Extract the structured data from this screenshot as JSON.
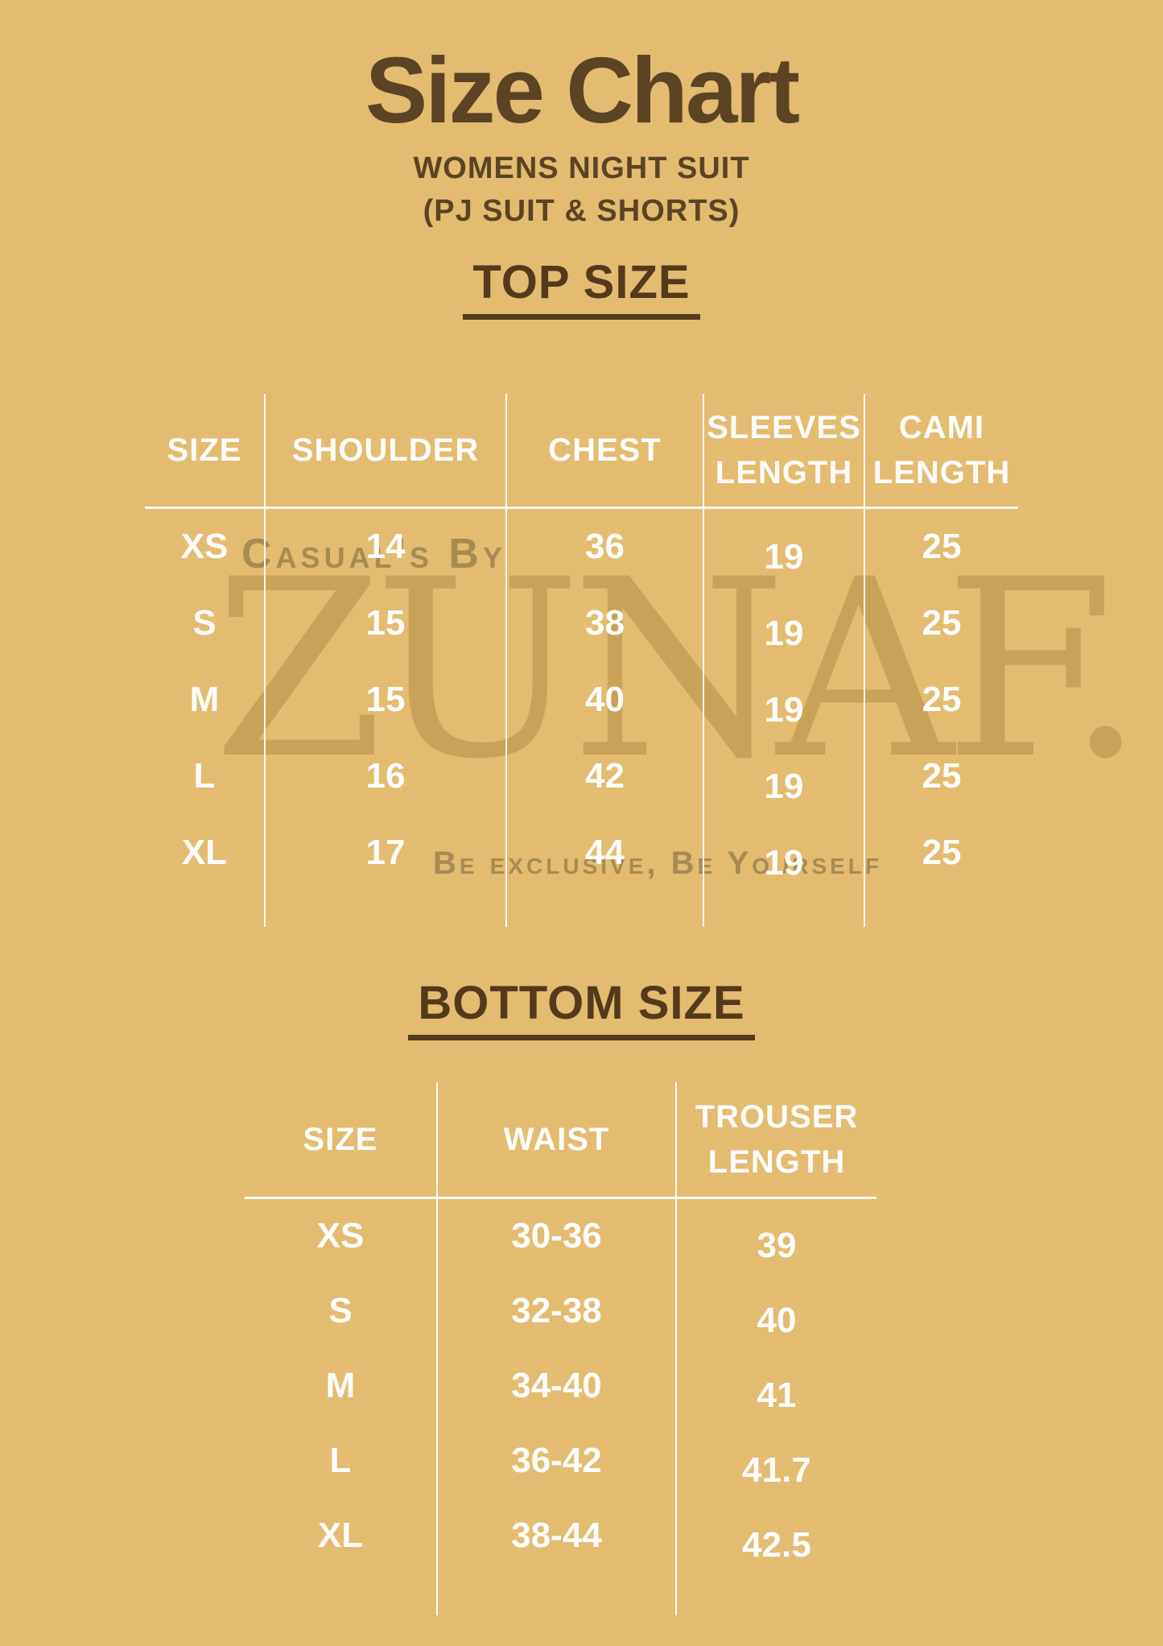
{
  "header": {
    "title": "Size Chart",
    "subtitle1": "WOMENS NIGHT SUIT",
    "subtitle2": "(PJ SUIT & SHORTS)"
  },
  "colors": {
    "background": "#e3bc71",
    "heading_text": "#5b4323",
    "table_text": "#fdfdfb",
    "watermark": "#94732c"
  },
  "top_section": {
    "heading": "TOP SIZE",
    "table": {
      "headers": [
        "SIZE",
        "SHOULDER",
        "CHEST",
        "SLEEVES LENGTH",
        "CAMI LENGTH"
      ],
      "rows": [
        [
          "XS",
          "14",
          "36",
          "19",
          "25"
        ],
        [
          "S",
          "15",
          "38",
          "19",
          "25"
        ],
        [
          "M",
          "15",
          "40",
          "19",
          "25"
        ],
        [
          "L",
          "16",
          "42",
          "19",
          "25"
        ],
        [
          "XL",
          "17",
          "44",
          "19",
          "25"
        ]
      ]
    }
  },
  "watermark": {
    "line1": "Casual's By",
    "brand": "ZUNAF.",
    "tagline": "Be exclusive, Be Yourself"
  },
  "bottom_section": {
    "heading": "BOTTOM SIZE",
    "table": {
      "headers": [
        "SIZE",
        "WAIST",
        "TROUSER LENGTH"
      ],
      "rows": [
        [
          "XS",
          "30-36",
          "39"
        ],
        [
          "S",
          "32-38",
          "40"
        ],
        [
          "M",
          "34-40",
          "41"
        ],
        [
          "L",
          "36-42",
          "41.7"
        ],
        [
          "XL",
          "38-44",
          "42.5"
        ]
      ]
    }
  }
}
